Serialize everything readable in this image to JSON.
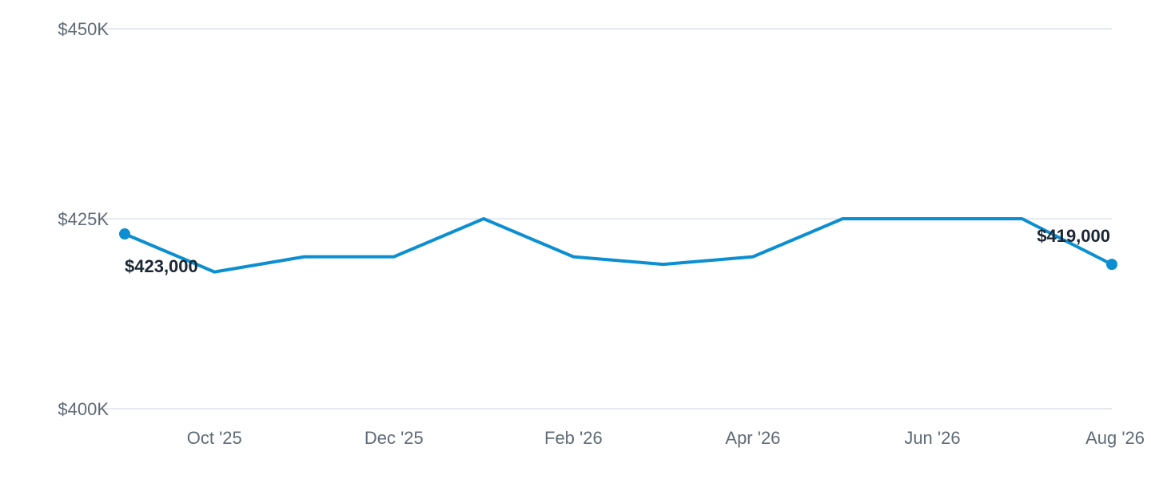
{
  "chart_data": {
    "type": "line",
    "title": "",
    "xlabel": "",
    "ylabel": "",
    "x": [
      "2025-09",
      "2025-10",
      "2025-11",
      "2025-12",
      "2026-01",
      "2026-02",
      "2026-03",
      "2026-04",
      "2026-05",
      "2026-06",
      "2026-07",
      "2026-08"
    ],
    "series": [
      {
        "values": [
          423000,
          418000,
          420000,
          420000,
          425000,
          420000,
          419000,
          420000,
          425000,
          425000,
          425000,
          419000
        ],
        "color": "#0b8fd1"
      }
    ],
    "ylim": [
      400000,
      450000
    ],
    "y_ticks": [
      {
        "value": 450000,
        "label": "$450K"
      },
      {
        "value": 425000,
        "label": "$425K"
      },
      {
        "value": 400000,
        "label": "$400K"
      }
    ],
    "x_ticks": [
      {
        "x": "2025-10",
        "label": "Oct '25"
      },
      {
        "x": "2025-12",
        "label": "Dec '25"
      },
      {
        "x": "2026-02",
        "label": "Feb '26"
      },
      {
        "x": "2026-04",
        "label": "Apr '26"
      },
      {
        "x": "2026-06",
        "label": "Jun '26"
      },
      {
        "x": "2026-08",
        "label": "Aug '26"
      }
    ],
    "annotations": [
      {
        "x": "2025-09",
        "text": "$423,000"
      },
      {
        "x": "2026-08",
        "text": "$419,000"
      }
    ],
    "grid": true,
    "legend": "none"
  }
}
